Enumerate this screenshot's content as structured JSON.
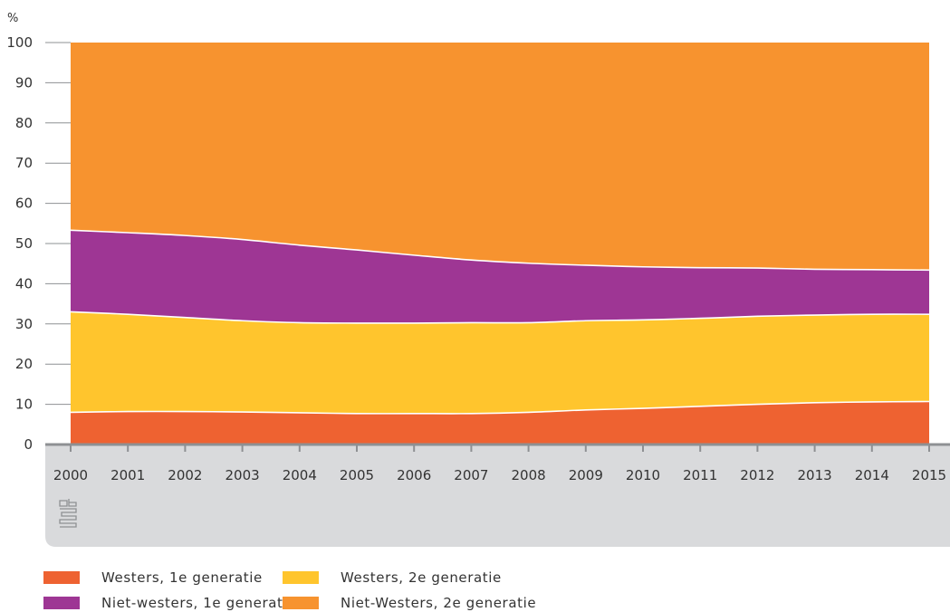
{
  "chart_data": {
    "type": "area",
    "stacked": true,
    "unit_label": "%",
    "x": [
      "2000",
      "2001",
      "2002",
      "2003",
      "2004",
      "2005",
      "2006",
      "2007",
      "2008",
      "2009",
      "2010",
      "2011",
      "2012",
      "2013",
      "2014",
      "2015"
    ],
    "yticks": [
      "0",
      "10",
      "20",
      "30",
      "40",
      "50",
      "60",
      "70",
      "80",
      "90",
      "100"
    ],
    "ylim": [
      0,
      100
    ],
    "grid": false,
    "legend_position": "bottom",
    "series": [
      {
        "name": "Westers, 1e generatie",
        "color": "#EE6231",
        "values": [
          8.0,
          8.2,
          8.2,
          8.1,
          7.9,
          7.7,
          7.7,
          7.7,
          8.0,
          8.6,
          9.0,
          9.5,
          10.0,
          10.4,
          10.6,
          10.7
        ]
      },
      {
        "name": "Westers, 2e generatie",
        "color": "#FFC52D",
        "values": [
          25.0,
          24.2,
          23.4,
          22.7,
          22.4,
          22.5,
          22.5,
          22.6,
          22.3,
          22.2,
          22.0,
          21.9,
          21.9,
          21.8,
          21.8,
          21.7
        ]
      },
      {
        "name": "Niet-westers, 1e generatie",
        "color": "#9E3694",
        "values": [
          20.3,
          20.3,
          20.4,
          20.2,
          19.3,
          18.2,
          16.9,
          15.6,
          14.8,
          13.8,
          13.2,
          12.6,
          12.0,
          11.4,
          11.1,
          11.0
        ]
      },
      {
        "name": "Niet-Westers, 2e generatie",
        "color": "#F7932F",
        "values": [
          46.7,
          47.3,
          48.0,
          49.0,
          50.4,
          51.6,
          52.9,
          54.1,
          54.9,
          55.4,
          55.8,
          56.0,
          56.1,
          56.4,
          56.5,
          56.6
        ]
      }
    ]
  },
  "colors": {
    "axis_band": "#D9DADC",
    "axis_line": "#8E9093",
    "area_divider": "#FFFFFF"
  },
  "logo": {
    "name": "cbs-logo"
  }
}
